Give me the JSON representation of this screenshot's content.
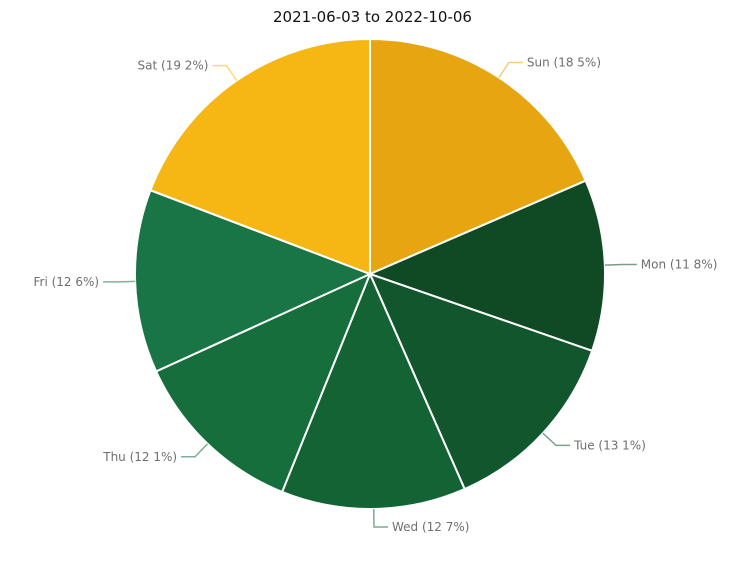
{
  "chart_data": {
    "type": "pie",
    "title": "2021-06-03 to 2022-10-06",
    "slices": [
      {
        "name": "Sun",
        "value": 18.5,
        "label": "Sun (18 5%)",
        "color": "#e8a512"
      },
      {
        "name": "Mon",
        "value": 11.8,
        "label": "Mon (11 8%)",
        "color": "#0f4a25"
      },
      {
        "name": "Tue",
        "value": 13.1,
        "label": "Tue (13 1%)",
        "color": "#11562c"
      },
      {
        "name": "Wed",
        "value": 12.7,
        "label": "Wed (12 7%)",
        "color": "#136334"
      },
      {
        "name": "Thu",
        "value": 12.1,
        "label": "Thu (12 1%)",
        "color": "#166e3c"
      },
      {
        "name": "Fri",
        "value": 12.6,
        "label": "Fri (12 6%)",
        "color": "#197546"
      },
      {
        "name": "Sat",
        "value": 19.2,
        "label": "Sat (19 2%)",
        "color": "#f6b714"
      }
    ],
    "start_angle": "12 o'clock, clockwise"
  }
}
